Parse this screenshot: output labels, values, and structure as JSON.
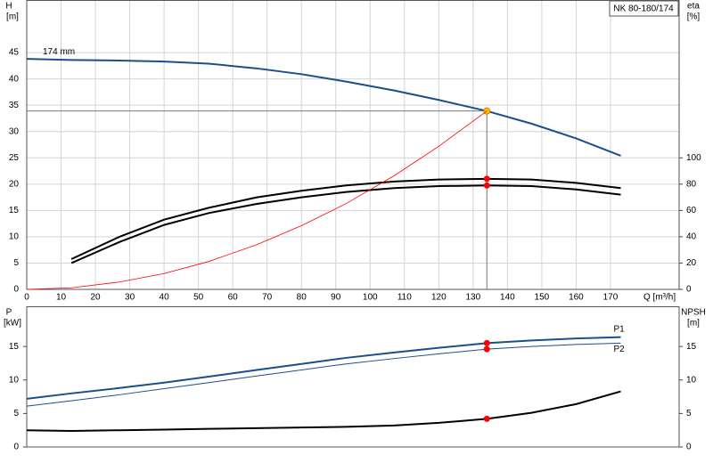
{
  "chart_data": [
    {
      "type": "line",
      "title": "NK 80-180/174",
      "ylabel": "H",
      "yunit": "[m]",
      "y2label": "eta",
      "y2unit": "[%]",
      "xlabel": "Q [m³/h]",
      "x": [
        0,
        13,
        27,
        40,
        53,
        67,
        80,
        93,
        107,
        120,
        134,
        147,
        160,
        173
      ],
      "xlim": [
        0,
        190
      ],
      "xticks": [
        0,
        10,
        20,
        30,
        40,
        50,
        60,
        70,
        80,
        90,
        100,
        110,
        120,
        130,
        140,
        150,
        160,
        170
      ],
      "ylim": [
        0,
        55
      ],
      "yticks": [
        0,
        5,
        10,
        15,
        20,
        25,
        30,
        35,
        40,
        45
      ],
      "y2lim": [
        0,
        220
      ],
      "y2ticks": [
        0,
        20,
        40,
        60,
        80,
        100
      ],
      "grid": true,
      "operating_q": 134,
      "label_position": "start",
      "series": [
        {
          "name": "174 mm",
          "color": "#1a4f8a",
          "line_width": 2,
          "marker_color": "#ffc000",
          "values": [
            43.8,
            43.6,
            43.5,
            43.3,
            42.9,
            42.0,
            40.9,
            39.5,
            37.8,
            36.0,
            33.9,
            31.5,
            28.7,
            25.4
          ]
        },
        {
          "color": "#000000",
          "line_width": 2,
          "axis": "y2",
          "marker_color": "#ff0000",
          "values": [
            null,
            23,
            40,
            53,
            62,
            70,
            75,
            79,
            82,
            83.5,
            84,
            83.5,
            81,
            77
          ]
        },
        {
          "color": "#000000",
          "line_width": 2,
          "axis": "y2",
          "marker_color": "#ff0000",
          "values": [
            null,
            20,
            36,
            49,
            58,
            65,
            70,
            74,
            77,
            78.5,
            79,
            78.5,
            76,
            72
          ]
        },
        {
          "color": "#ff0000",
          "line_width": 0.8,
          "values": [
            0,
            0.3,
            1.4,
            3.0,
            5.3,
            8.5,
            12.1,
            16.3,
            21.6,
            27.2,
            33.9,
            null,
            null,
            null
          ]
        }
      ]
    },
    {
      "type": "line",
      "ylabel": "P",
      "yunit": "[kW]",
      "y2label": "NPSH",
      "y2unit": "[m]",
      "x": [
        0,
        13,
        27,
        40,
        53,
        67,
        80,
        93,
        107,
        120,
        134,
        147,
        160,
        173
      ],
      "xlim": [
        0,
        190
      ],
      "ylim": [
        0,
        21
      ],
      "yticks": [
        0,
        5,
        10,
        15
      ],
      "y2lim": [
        0,
        21
      ],
      "y2ticks": [
        0,
        5,
        10,
        15
      ],
      "grid": false,
      "operating_q": 134,
      "label_position": "end",
      "series": [
        {
          "name": "P1",
          "color": "#1a4f8a",
          "line_width": 2,
          "marker_color": "#ff0000",
          "values": [
            7.2,
            8.0,
            8.8,
            9.6,
            10.5,
            11.5,
            12.4,
            13.3,
            14.1,
            14.8,
            15.5,
            15.9,
            16.2,
            16.4
          ]
        },
        {
          "name": "P2",
          "color": "#1a4f8a",
          "line_width": 1,
          "marker_color": "#ff0000",
          "values": [
            6.1,
            6.9,
            7.8,
            8.7,
            9.6,
            10.6,
            11.5,
            12.4,
            13.2,
            13.9,
            14.6,
            15.0,
            15.3,
            15.5
          ]
        },
        {
          "color": "#000000",
          "line_width": 2,
          "axis": "y2",
          "marker_color": "#ff0000",
          "values": [
            2.5,
            2.4,
            2.5,
            2.6,
            2.7,
            2.8,
            2.9,
            3.0,
            3.2,
            3.6,
            4.2,
            5.1,
            6.4,
            8.3
          ]
        }
      ]
    }
  ]
}
